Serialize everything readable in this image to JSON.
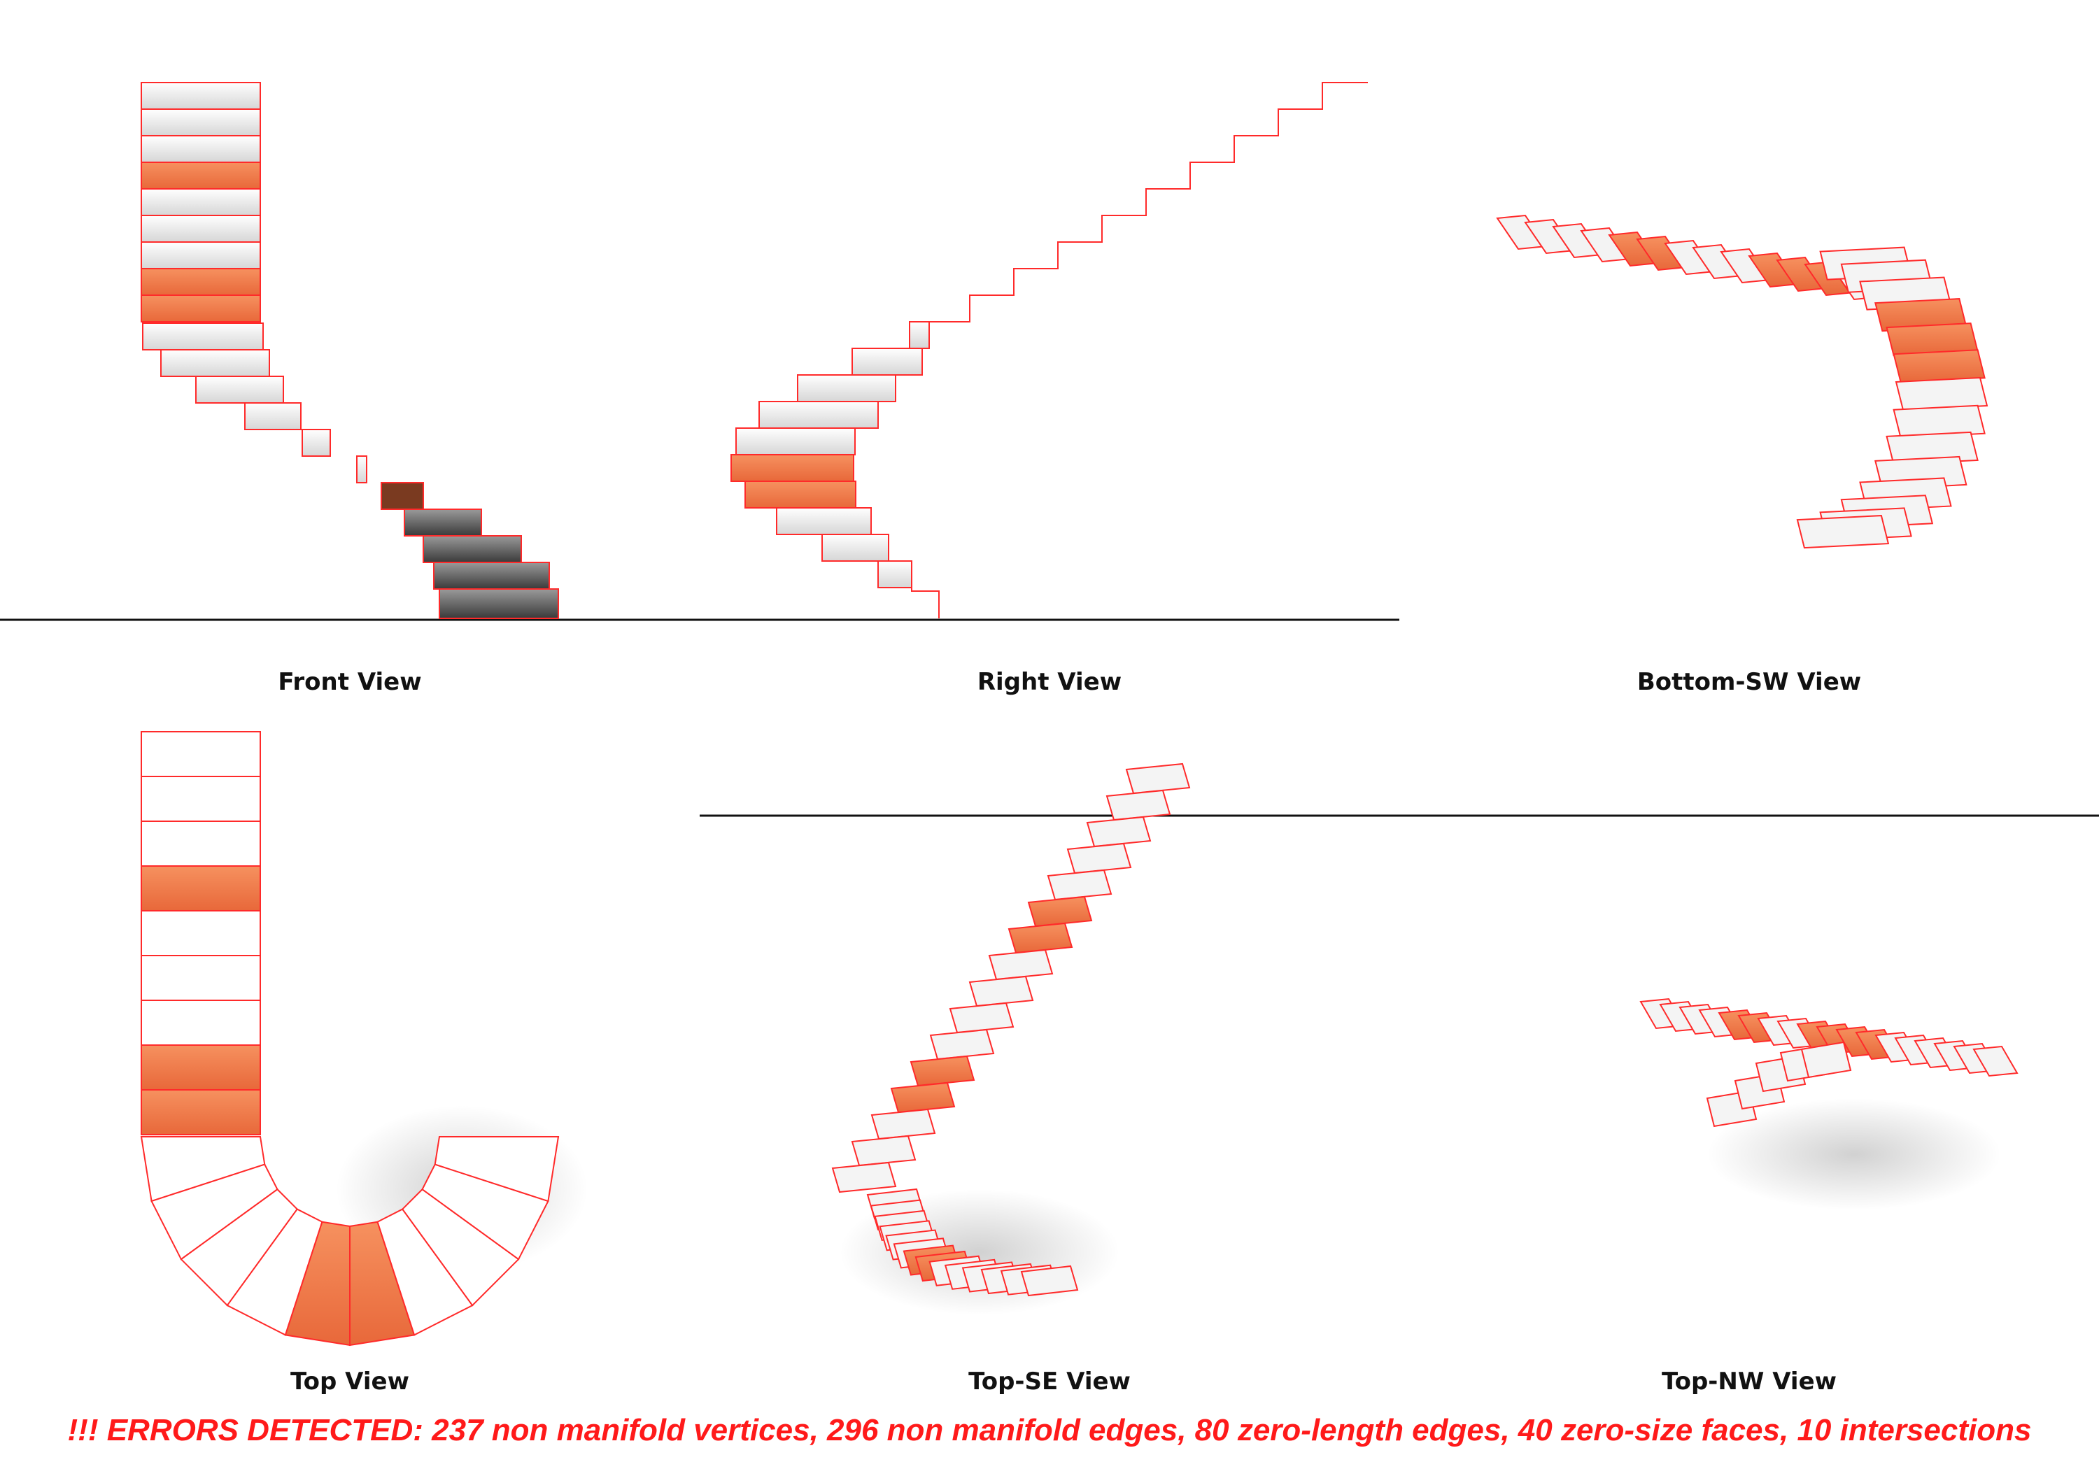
{
  "views": [
    {
      "id": "front",
      "label": "Front View"
    },
    {
      "id": "right",
      "label": "Right View"
    },
    {
      "id": "bottom-sw",
      "label": "Bottom-SW View"
    },
    {
      "id": "top",
      "label": "Top View"
    },
    {
      "id": "top-se",
      "label": "Top-SE View"
    },
    {
      "id": "top-nw",
      "label": "Top-NW View"
    }
  ],
  "errors_message": "!!! ERRORS DETECTED: 237 non manifold vertices, 296 non manifold edges, 80 zero-length edges, 40 zero-size faces, 10 intersections",
  "colors": {
    "edge": "#ff2a2a",
    "highlight": "#f47a4a",
    "step_fill": "#f1f1f1",
    "ground_line": "#111111",
    "error_text": "#ff1a1a"
  }
}
